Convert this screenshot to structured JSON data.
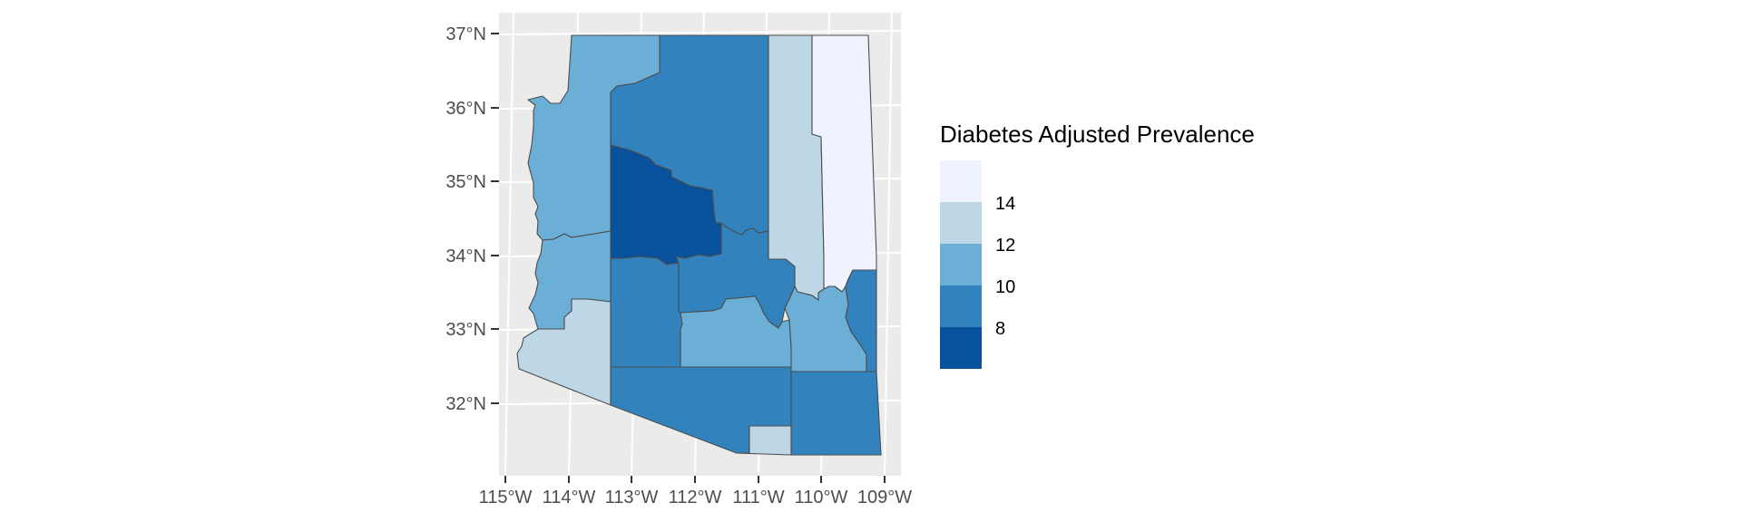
{
  "map": {
    "region": "Arizona",
    "unit": "county",
    "lat_ticks": [
      "37°N",
      "36°N",
      "35°N",
      "34°N",
      "33°N",
      "32°N"
    ],
    "lon_ticks": [
      "115°W",
      "114°W",
      "113°W",
      "112°W",
      "111°W",
      "110°W",
      "109°W"
    ],
    "panel_background": "#ebebeb",
    "grid_color": "#ffffff",
    "county_fill_classes": {
      "Mohave": "10-12",
      "Coconino": "8-10",
      "Navajo": "12-14",
      "Apache": ">14",
      "Yavapai": "<8",
      "La Paz": "10-12",
      "Maricopa": "8-10",
      "Gila": "8-10",
      "Yuma": "12-14",
      "Pinal": "10-12",
      "Graham": "10-12",
      "Greenlee": "8-10",
      "Pima": "8-10",
      "Santa Cruz": "12-14",
      "Cochise": "8-10"
    }
  },
  "legend": {
    "title": "Diabetes Adjusted Prevalence",
    "breaks": [
      "14",
      "12",
      "10",
      "8"
    ],
    "colors": {
      ">14": "#eff3ff",
      "12-14": "#bdd7e7",
      "10-12": "#6baed6",
      "8-10": "#3182bd",
      "<8": "#08519c"
    },
    "color_order": [
      ">14",
      "12-14",
      "10-12",
      "8-10",
      "<8"
    ]
  }
}
